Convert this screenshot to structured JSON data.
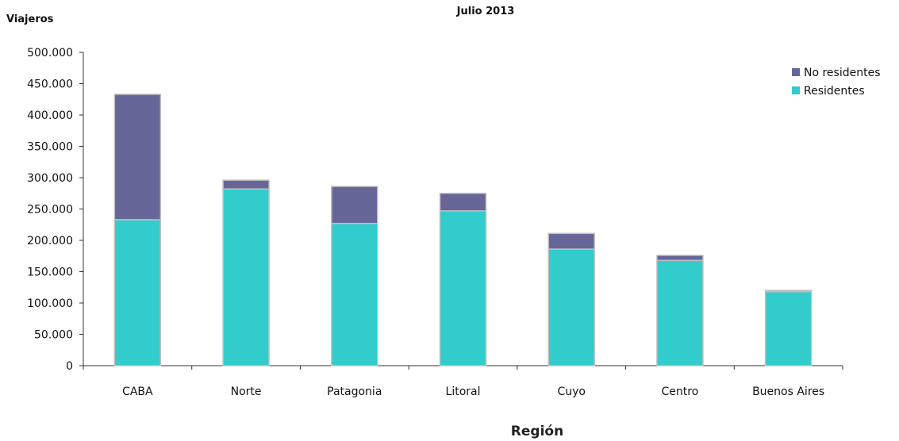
{
  "chart_data": {
    "type": "bar",
    "stacked": true,
    "title": "Julio 2013",
    "ylabel": "Viajeros",
    "xlabel": "Región",
    "categories": [
      "CABA",
      "Norte",
      "Patagonia",
      "Litoral",
      "Cuyo",
      "Centro",
      "Buenos Aires"
    ],
    "series": [
      {
        "name": "Residentes",
        "color": "#33cccc",
        "values": [
          233000,
          282000,
          227000,
          247000,
          186000,
          168000,
          118000
        ]
      },
      {
        "name": "No residentes",
        "color": "#666699",
        "values": [
          200000,
          14000,
          59000,
          28000,
          25000,
          8000,
          2000
        ]
      }
    ],
    "ylim": [
      0,
      500000
    ],
    "yticks": [
      "0",
      "50.000",
      "100.000",
      "150.000",
      "200.000",
      "250.000",
      "300.000",
      "350.000",
      "400.000",
      "450.000",
      "500.000"
    ],
    "legend": {
      "position": "top-right",
      "entries": [
        "No residentes",
        "Residentes"
      ]
    },
    "grid": false
  }
}
